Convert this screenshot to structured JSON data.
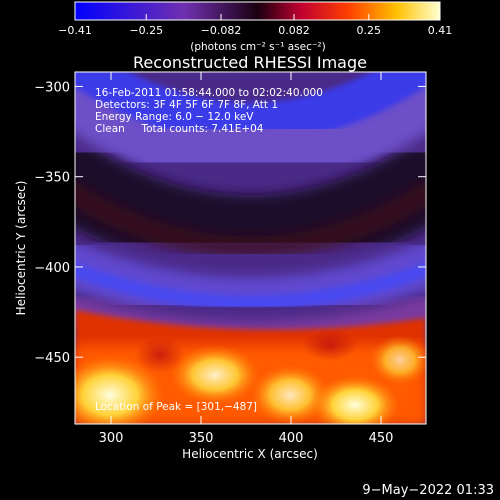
{
  "chart_data": {
    "type": "heatmap",
    "title": "Reconstructed RHESSI Image",
    "xlabel": "Heliocentric X (arcsec)",
    "ylabel": "Heliocentric Y (arcsec)",
    "xlim": [
      280,
      475
    ],
    "ylim": [
      -487,
      -292
    ],
    "xticks": [
      300,
      350,
      400,
      450
    ],
    "xtick_labels": [
      "300",
      "350",
      "400",
      "450"
    ],
    "yticks": [
      -300,
      -350,
      -400,
      -450
    ],
    "ytick_labels": [
      "−300",
      "−350",
      "−400",
      "−450"
    ],
    "colorbar": {
      "min": -0.41,
      "max": 0.41,
      "ticks": [
        -0.41,
        -0.25,
        -0.082,
        0.082,
        0.25,
        0.41
      ],
      "tick_labels": [
        "−0.41",
        "−0.25",
        "−0.082",
        "0.082",
        "0.25",
        "0.41"
      ],
      "units_label": "(photons cm⁻² s⁻¹ asec⁻²)",
      "colors": [
        "#0000ff",
        "#7030b0",
        "#c00050",
        "#ff2000",
        "#ff8000",
        "#ffd000",
        "#ffffc0"
      ]
    },
    "annotations": [
      "16-Feb-2011 01:58:44.000 to 02:02:40.000",
      "Detectors: 3F 4F 5F 6F 7F 8F, Att 1",
      "Energy Range: 6.0 − 12.0 keV",
      "Clean     Total counts: 7.41E+04"
    ],
    "peak_label": "Location of Peak = [301,−487]",
    "grid": false
  },
  "footer": {
    "date": "9−May−2022 01:33"
  }
}
